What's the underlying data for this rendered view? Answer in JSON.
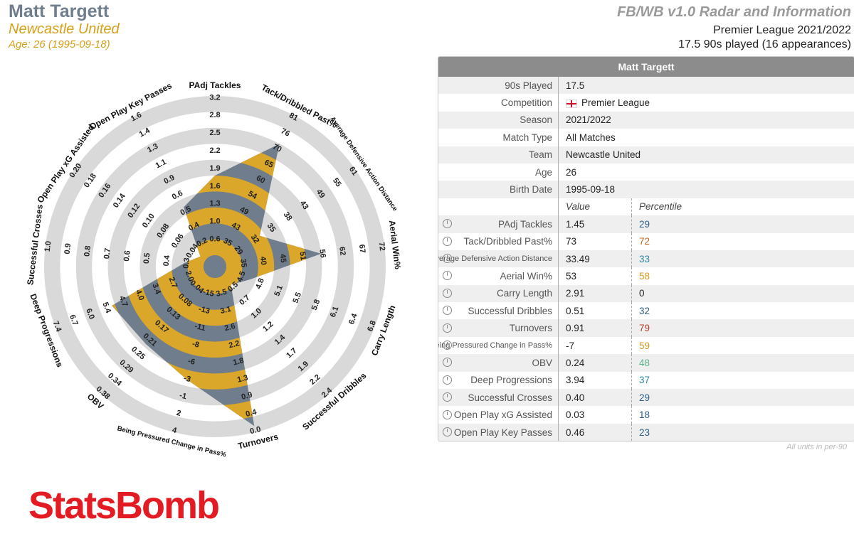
{
  "header": {
    "player_name": "Matt Targett",
    "team": "Newcastle United",
    "age_line": "Age: 26 (1995-09-18)",
    "template_title": "FB/WB v1.0 Radar and Information",
    "league_season": "Premier League 2021/2022",
    "minutes_line": "17.5 90s played (16 appearances)"
  },
  "colors": {
    "player_title": "#6f7d8c",
    "team_gold": "#d4a017",
    "ring_gray": "#d9d9d9",
    "radar_fill_gold": "#dba72a",
    "radar_fill_slate": "#6f7d8c",
    "logo_red": "#e31b23",
    "pct_blue": "#2d5f8b",
    "pct_orange": "#c8641e",
    "pct_gold": "#d79a1e",
    "pct_green": "#5bb38a",
    "pct_teal": "#2b8aa6",
    "pct_brick": "#b5402a"
  },
  "chart_data": {
    "type": "radar",
    "title": "",
    "rings": 5,
    "metrics": [
      {
        "name": "PAdj Tackles",
        "ticks": [
          "0.6",
          "1.0",
          "1.3",
          "1.6",
          "1.9",
          "2.2",
          "2.5",
          "2.8",
          "3.2"
        ],
        "value": 1.45
      },
      {
        "name": "Tack/Dribbled Past%",
        "ticks": [
          "35",
          "43",
          "49",
          "54",
          "60",
          "65",
          "70",
          "76",
          "81"
        ],
        "value": 73
      },
      {
        "name": "Average Defensive Action Distance",
        "ticks": [
          "29",
          "32",
          "35",
          "38",
          "43",
          "49",
          "55",
          "61"
        ],
        "value": 33.49
      },
      {
        "name": "Aerial Win%",
        "ticks": [
          "35",
          "40",
          "45",
          "51",
          "56",
          "62",
          "67",
          "72"
        ],
        "value": 53
      },
      {
        "name": "Carry Length",
        "ticks": [
          "4.5",
          "4.8",
          "5.1",
          "5.5",
          "5.8",
          "6.1",
          "6.4",
          "6.8"
        ],
        "value": 2.91
      },
      {
        "name": "Successful Dribbles",
        "ticks": [
          "0.5",
          "0.7",
          "1.0",
          "1.2",
          "1.4",
          "1.7",
          "1.9",
          "2.2",
          "2.4"
        ],
        "value": 0.51
      },
      {
        "name": "Turnovers",
        "ticks": [
          "3.5",
          "3.1",
          "2.6",
          "2.2",
          "1.8",
          "1.3",
          "0.9",
          "0.4",
          "0.0"
        ],
        "value": 0.91
      },
      {
        "name": "Being Pressured Change in Pass%",
        "ticks": [
          "-15",
          "-13",
          "-11",
          "-8",
          "-6",
          "-3",
          "-1",
          "2",
          "4"
        ],
        "value": -7
      },
      {
        "name": "OBV",
        "ticks": [
          "0.04",
          "0.08",
          "0.13",
          "0.17",
          "0.21",
          "0.25",
          "0.29",
          "0.34",
          "0.38"
        ],
        "value": 0.24
      },
      {
        "name": "Deep Progressions",
        "ticks": [
          "2.0",
          "2.7",
          "3.4",
          "4.0",
          "4.7",
          "5.4",
          "6.0",
          "6.7",
          "7.4"
        ],
        "value": 3.94
      },
      {
        "name": "Successful Crosses",
        "ticks": [
          "0.3",
          "0.4",
          "0.5",
          "0.6",
          "0.7",
          "0.8",
          "0.9",
          "1.0"
        ],
        "value": 0.4
      },
      {
        "name": "Open Play xG Assisted",
        "ticks": [
          "0.04",
          "0.06",
          "0.08",
          "0.10",
          "0.12",
          "0.14",
          "0.16",
          "0.18",
          "0.20"
        ],
        "value": 0.03
      },
      {
        "name": "Open Play Key Passes",
        "ticks": [
          "0.2",
          "0.4",
          "0.5",
          "0.6",
          "0.9",
          "1.1",
          "1.3",
          "1.4",
          "1.6"
        ],
        "value": 0.46
      }
    ],
    "polygon_levels_fraction": [
      0.5,
      0.8,
      0.27,
      0.6,
      0.16,
      0.08,
      0.96,
      0.66,
      0.58,
      0.62,
      0.12,
      0.04,
      0.35
    ]
  },
  "table": {
    "title": "Matt Targett",
    "info_rows": [
      {
        "label": "90s Played",
        "value": "17.5"
      },
      {
        "label": "Competition",
        "value": "Premier League",
        "flag": true
      },
      {
        "label": "Season",
        "value": "2021/2022"
      },
      {
        "label": "Match Type",
        "value": "All Matches"
      },
      {
        "label": "Team",
        "value": "Newcastle United"
      },
      {
        "label": "Age",
        "value": "26"
      },
      {
        "label": "Birth Date",
        "value": "1995-09-18"
      }
    ],
    "value_header": "Value",
    "percentile_header": "Percentile",
    "stat_rows": [
      {
        "label": "PAdj Tackles",
        "value": "1.45",
        "percentile": "29",
        "color": "#2d5f8b"
      },
      {
        "label": "Tack/Dribbled Past%",
        "value": "73",
        "percentile": "72",
        "color": "#c8641e"
      },
      {
        "label": "Average Defensive Action Distance",
        "value": "33.49",
        "percentile": "33",
        "color": "#2b8aa6",
        "small": true
      },
      {
        "label": "Aerial Win%",
        "value": "53",
        "percentile": "58",
        "color": "#d79a1e"
      },
      {
        "label": "Carry Length",
        "value": "2.91",
        "percentile": "0",
        "color": "#222222"
      },
      {
        "label": "Successful Dribbles",
        "value": "0.51",
        "percentile": "32",
        "color": "#2d5f8b"
      },
      {
        "label": "Turnovers",
        "value": "0.91",
        "percentile": "79",
        "color": "#b5402a"
      },
      {
        "label": "Being Pressured Change in Pass%",
        "value": "-7",
        "percentile": "59",
        "color": "#d79a1e",
        "small": true
      },
      {
        "label": "OBV",
        "value": "0.24",
        "percentile": "48",
        "color": "#5bb38a"
      },
      {
        "label": "Deep Progressions",
        "value": "3.94",
        "percentile": "37",
        "color": "#2b8aa6"
      },
      {
        "label": "Successful Crosses",
        "value": "0.40",
        "percentile": "29",
        "color": "#2d5f8b"
      },
      {
        "label": "Open Play xG Assisted",
        "value": "0.03",
        "percentile": "18",
        "color": "#2d5f8b"
      },
      {
        "label": "Open Play Key Passes",
        "value": "0.46",
        "percentile": "23",
        "color": "#2d5f8b"
      }
    ],
    "footnote": "All units in per-90"
  },
  "brand": {
    "name": "StatsBomb"
  }
}
